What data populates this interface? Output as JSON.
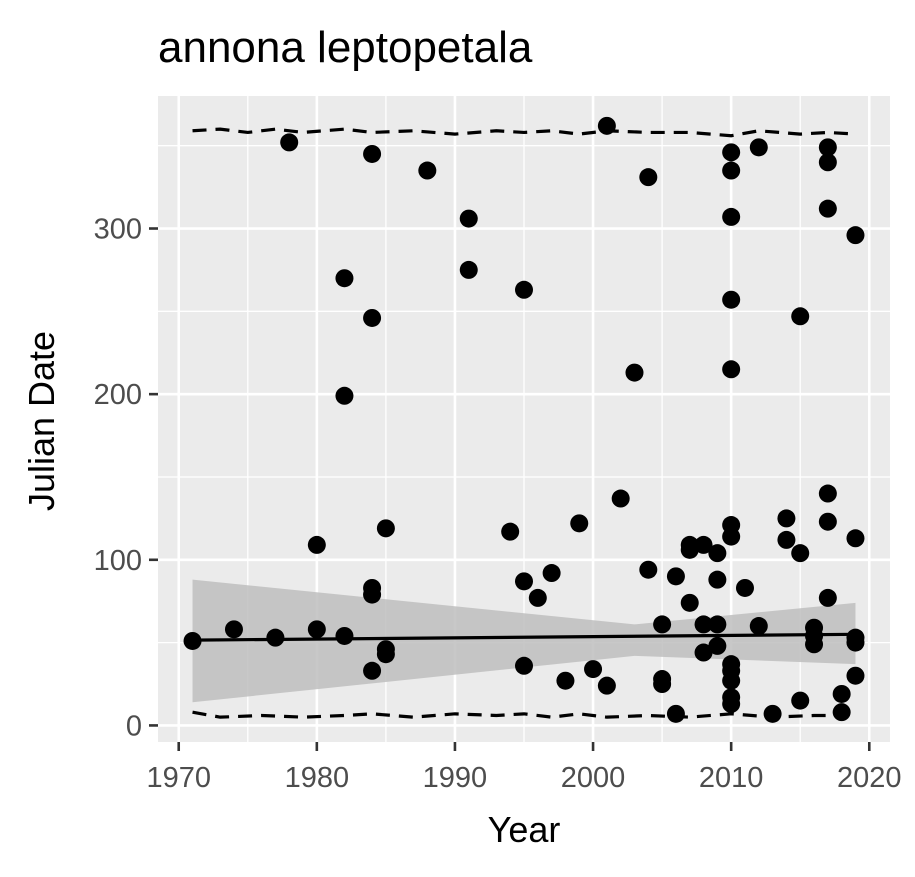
{
  "chart_data": {
    "type": "scatter",
    "title": "annona leptopetala",
    "xlabel": "Year",
    "ylabel": "Julian Date",
    "xlim": [
      1968.5,
      2021.5
    ],
    "ylim": [
      -10,
      380
    ],
    "x_ticks": [
      1970,
      1980,
      1990,
      2000,
      2010,
      2020
    ],
    "y_ticks": [
      0,
      100,
      200,
      300
    ],
    "x_tick_labels": [
      "1970",
      "1980",
      "1990",
      "2000",
      "2010",
      "2020"
    ],
    "y_tick_labels": [
      "0",
      "100",
      "200",
      "300"
    ],
    "grid": true,
    "legend": "none",
    "colors": {
      "panel": "#EBEBEB",
      "grid_major": "#FFFFFF",
      "points": "#000000",
      "ribbon": "#BEBEBE",
      "fit_line": "#000000",
      "quantile_lines": "#000000"
    },
    "points": [
      [
        1971,
        51
      ],
      [
        1974,
        58
      ],
      [
        1977,
        53
      ],
      [
        1978,
        352
      ],
      [
        1980,
        109
      ],
      [
        1980,
        58
      ],
      [
        1982,
        270
      ],
      [
        1982,
        199
      ],
      [
        1982,
        54
      ],
      [
        1984,
        345
      ],
      [
        1984,
        246
      ],
      [
        1984,
        83
      ],
      [
        1984,
        79
      ],
      [
        1984,
        33
      ],
      [
        1985,
        119
      ],
      [
        1985,
        46
      ],
      [
        1985,
        43
      ],
      [
        1988,
        335
      ],
      [
        1991,
        306
      ],
      [
        1991,
        275
      ],
      [
        1994,
        117
      ],
      [
        1995,
        263
      ],
      [
        1995,
        87
      ],
      [
        1995,
        36
      ],
      [
        1996,
        77
      ],
      [
        1997,
        92
      ],
      [
        1998,
        27
      ],
      [
        1999,
        122
      ],
      [
        2000,
        34
      ],
      [
        2001,
        362
      ],
      [
        2001,
        24
      ],
      [
        2002,
        137
      ],
      [
        2003,
        213
      ],
      [
        2004,
        331
      ],
      [
        2004,
        94
      ],
      [
        2005,
        61
      ],
      [
        2005,
        28
      ],
      [
        2005,
        25
      ],
      [
        2006,
        90
      ],
      [
        2006,
        7
      ],
      [
        2007,
        109
      ],
      [
        2007,
        106
      ],
      [
        2007,
        74
      ],
      [
        2008,
        109
      ],
      [
        2008,
        61
      ],
      [
        2008,
        44
      ],
      [
        2009,
        104
      ],
      [
        2009,
        88
      ],
      [
        2009,
        61
      ],
      [
        2009,
        48
      ],
      [
        2010,
        346
      ],
      [
        2010,
        335
      ],
      [
        2010,
        307
      ],
      [
        2010,
        257
      ],
      [
        2010,
        215
      ],
      [
        2010,
        121
      ],
      [
        2010,
        114
      ],
      [
        2010,
        37
      ],
      [
        2010,
        33
      ],
      [
        2010,
        27
      ],
      [
        2010,
        17
      ],
      [
        2010,
        13
      ],
      [
        2011,
        83
      ],
      [
        2012,
        349
      ],
      [
        2012,
        60
      ],
      [
        2013,
        7
      ],
      [
        2014,
        125
      ],
      [
        2014,
        112
      ],
      [
        2015,
        247
      ],
      [
        2015,
        104
      ],
      [
        2015,
        15
      ],
      [
        2016,
        59
      ],
      [
        2016,
        54
      ],
      [
        2016,
        49
      ],
      [
        2017,
        349
      ],
      [
        2017,
        340
      ],
      [
        2017,
        312
      ],
      [
        2017,
        140
      ],
      [
        2017,
        123
      ],
      [
        2017,
        77
      ],
      [
        2018,
        19
      ],
      [
        2018,
        8
      ],
      [
        2019,
        296
      ],
      [
        2019,
        113
      ],
      [
        2019,
        53
      ],
      [
        2019,
        50
      ],
      [
        2019,
        30
      ]
    ],
    "fit": {
      "x": [
        1971,
        2019
      ],
      "y": [
        51.5,
        55
      ],
      "ribbon_lower": [
        14,
        37
      ],
      "ribbon_upper": [
        88,
        74
      ]
    },
    "upper_quantile": {
      "x": [
        1971,
        1973,
        1975,
        1977,
        1979,
        1982,
        1984,
        1987,
        1990,
        1993,
        1995,
        1997,
        1999,
        2001,
        2004,
        2007,
        2010,
        2012,
        2015,
        2017,
        2019
      ],
      "y": [
        359,
        360,
        358,
        360,
        358,
        360,
        358,
        359,
        357,
        359,
        358,
        359,
        357,
        359,
        358,
        358,
        356,
        359,
        357,
        358,
        357
      ]
    },
    "lower_quantile": {
      "x": [
        1971,
        1973,
        1976,
        1979,
        1982,
        1984,
        1987,
        1990,
        1993,
        1995,
        1997,
        1999,
        2001,
        2004,
        2007,
        2010,
        2013,
        2016,
        2019
      ],
      "y": [
        8,
        5,
        6,
        5,
        6,
        7,
        5,
        7,
        6,
        7,
        5,
        7,
        5,
        6,
        5,
        7,
        5,
        6,
        6
      ]
    }
  }
}
